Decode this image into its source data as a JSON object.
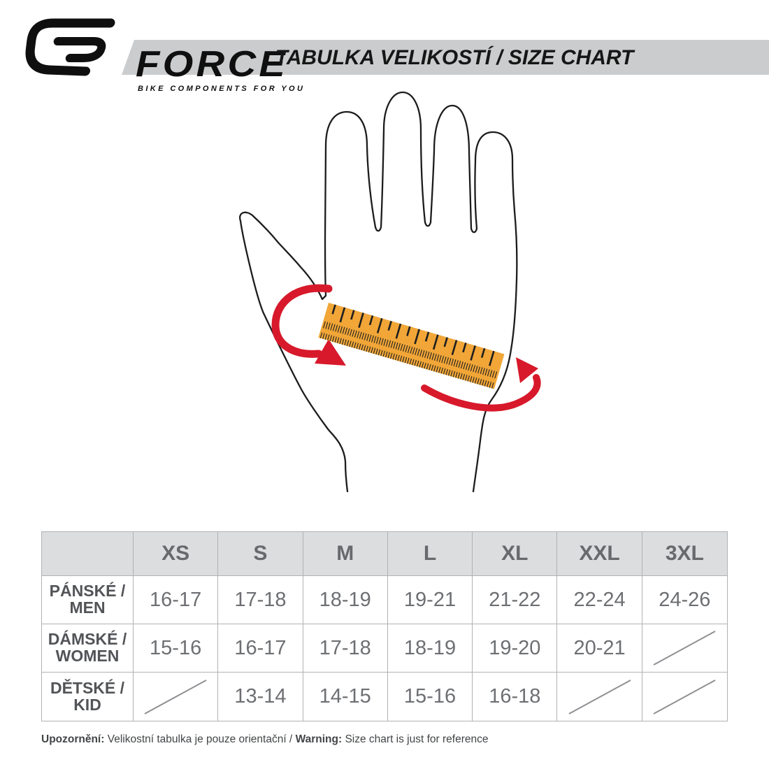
{
  "header": {
    "brand": "FORCE",
    "tagline": "BIKE COMPONENTS FOR YOU",
    "title": "TABULKA VELIKOSTÍ / SIZE CHART"
  },
  "illustration": {
    "graphic": "hand-with-measuring-ruler",
    "colors": {
      "ruler_orange": "#f1a637",
      "arrow_red": "#d7192b",
      "outline": "#1c1c1c"
    }
  },
  "table": {
    "columns": [
      "XS",
      "S",
      "M",
      "L",
      "XL",
      "XXL",
      "3XL"
    ],
    "rows": [
      {
        "label_line1": "PÁNSKÉ /",
        "label_line2": "MEN",
        "values": [
          "16-17",
          "17-18",
          "18-19",
          "19-21",
          "21-22",
          "22-24",
          "24-26"
        ]
      },
      {
        "label_line1": "DÁMSKÉ /",
        "label_line2": "WOMEN",
        "values": [
          "15-16",
          "16-17",
          "17-18",
          "18-19",
          "19-20",
          "20-21",
          null
        ]
      },
      {
        "label_line1": "DĚTSKÉ /",
        "label_line2": "KID",
        "values": [
          null,
          "13-14",
          "14-15",
          "15-16",
          "16-18",
          null,
          null
        ]
      }
    ],
    "not_available_marker": "slash"
  },
  "footer": {
    "note_cz_label": "Upozornění:",
    "note_cz_text": " Velikostní tabulka je pouze orientační / ",
    "note_en_label": "Warning:",
    "note_en_text": " Size chart is just for reference"
  },
  "colors": {
    "band_gray": "#cbcccd",
    "table_header_gray": "#dcddde",
    "table_border_gray": "#b0b2b4",
    "ruler_orange": "#f1a637",
    "arrow_red": "#d7192b",
    "text_dark": "#525457",
    "text_value": "#6d6f72"
  }
}
